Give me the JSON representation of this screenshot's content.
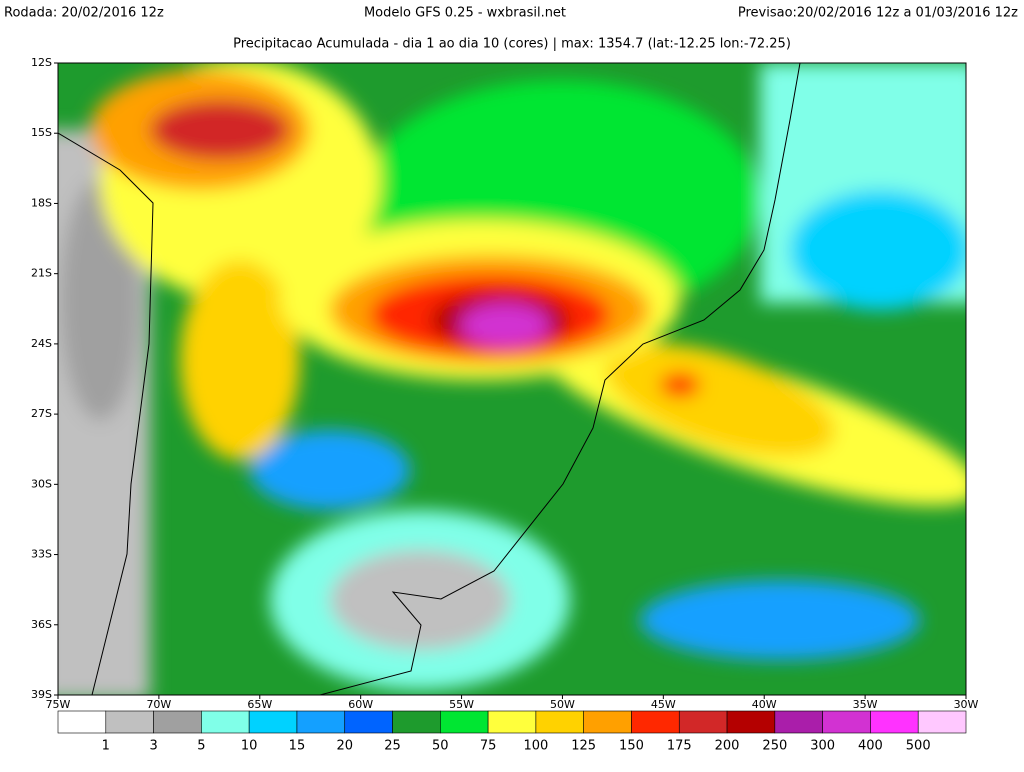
{
  "header": {
    "run": "Rodada: 20/02/2016 12z",
    "model": "Modelo GFS 0.25 - wxbrasil.net",
    "forecast": "Previsao:20/02/2016 12z a 01/03/2016 12z",
    "subtitle": "Precipitacao Acumulada - dia 1 ao dia 10 (cores) | max: 1354.7 (lat:-12.25 lon:-72.25)"
  },
  "map": {
    "lat_labels": [
      "12S",
      "15S",
      "18S",
      "21S",
      "24S",
      "27S",
      "30S",
      "33S",
      "36S",
      "39S"
    ],
    "lon_labels": [
      "75W",
      "70W",
      "65W",
      "60W",
      "55W",
      "50W",
      "45W",
      "40W",
      "35W",
      "30W"
    ]
  },
  "colorbar": {
    "labels": [
      "1",
      "3",
      "5",
      "10",
      "15",
      "20",
      "25",
      "50",
      "75",
      "100",
      "125",
      "150",
      "175",
      "200",
      "250",
      "300",
      "400",
      "500"
    ],
    "colors": [
      "#ffffff",
      "#c0c0c0",
      "#a0a0a0",
      "#80ffe8",
      "#00d2ff",
      "#14a0ff",
      "#0064ff",
      "#1e9b2d",
      "#00e632",
      "#ffff3c",
      "#ffd200",
      "#ffa000",
      "#ff2800",
      "#d22828",
      "#b40000",
      "#aa1eaa",
      "#d232d2",
      "#ff32ff",
      "#ffc8ff"
    ]
  }
}
